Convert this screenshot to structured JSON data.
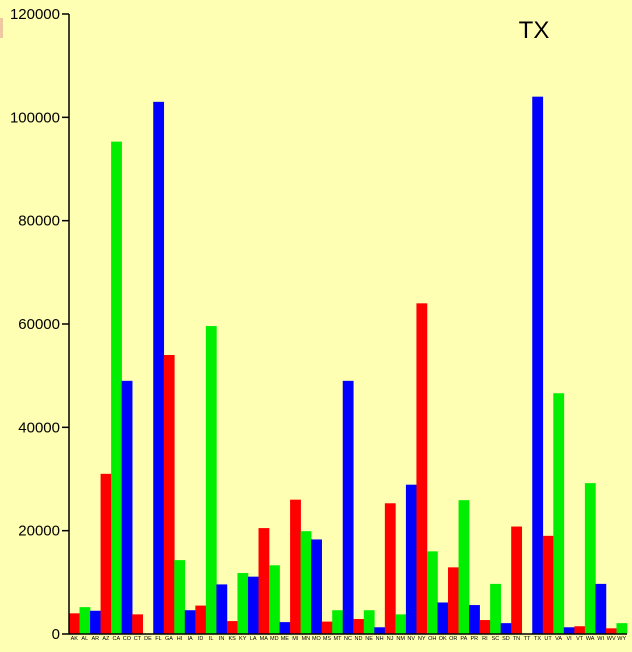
{
  "chart_data": {
    "type": "bar",
    "title": "TX",
    "xlabel": "",
    "ylabel": "",
    "ylim": [
      0,
      120000
    ],
    "y_ticks": [
      "0",
      "20000",
      "40000",
      "60000",
      "80000",
      "100000",
      "120000"
    ],
    "grid": false,
    "colors": [
      "#ff0000",
      "#00ee00",
      "#0000ff"
    ],
    "categories": [
      "AK",
      "AL",
      "AR",
      "AZ",
      "CA",
      "CO",
      "CT",
      "DE",
      "FL",
      "GA",
      "HI",
      "IA",
      "ID",
      "IL",
      "IN",
      "KS",
      "KY",
      "LA",
      "MA",
      "MD",
      "ME",
      "MI",
      "MN",
      "MO",
      "MS",
      "MT",
      "NC",
      "ND",
      "NE",
      "NH",
      "NJ",
      "NM",
      "NV",
      "NY",
      "OH",
      "OK",
      "OR",
      "PA",
      "PR",
      "RI",
      "SC",
      "SD",
      "TN",
      "TT",
      "TX",
      "UT",
      "VA",
      "VI",
      "VT",
      "WA",
      "WI",
      "WV",
      "WY"
    ],
    "values": [
      4000,
      5200,
      4500,
      31000,
      95300,
      49000,
      3800,
      0,
      103000,
      54000,
      14300,
      4600,
      5500,
      59600,
      9600,
      2500,
      11800,
      11100,
      20500,
      13300,
      2300,
      26000,
      19900,
      18300,
      2400,
      4600,
      49000,
      2900,
      4600,
      1300,
      25300,
      3800,
      28900,
      64000,
      16000,
      6100,
      12900,
      25900,
      5600,
      2700,
      9700,
      2100,
      20800,
      0,
      104000,
      19000,
      46600,
      1300,
      1500,
      29200,
      9700,
      1100,
      2100
    ]
  }
}
